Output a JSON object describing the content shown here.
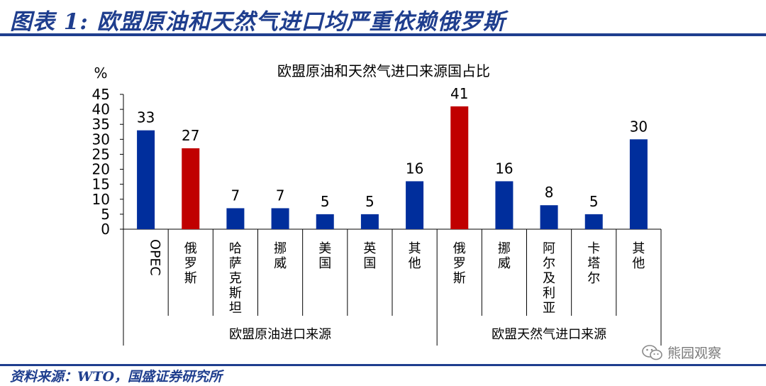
{
  "figure": {
    "title": "图表 1:  欧盟原油和天然气进口均严重依赖俄罗斯",
    "source": "资料来源：WTO，国盛证券研究所",
    "watermark": "熊园观察",
    "accent_color": "#1f3e8e"
  },
  "chart_data": {
    "type": "bar",
    "title": "欧盟原油和天然气进口来源国占比",
    "ylabel": "%",
    "ylim": [
      0,
      45
    ],
    "yticks": [
      0,
      5,
      10,
      15,
      20,
      25,
      30,
      35,
      40,
      45
    ],
    "grid": false,
    "categories": [
      "OPEC",
      "俄罗斯",
      "哈萨克斯坦",
      "挪威",
      "美国",
      "英国",
      "其他",
      "俄罗斯",
      "挪威",
      "阿尔及利亚",
      "卡塔尔",
      "其他"
    ],
    "values": [
      33,
      27,
      7,
      7,
      5,
      5,
      16,
      41,
      16,
      8,
      5,
      30
    ],
    "groups": [
      {
        "label": "欧盟原油进口来源",
        "count": 7
      },
      {
        "label": "欧盟天然气进口来源",
        "count": 5
      }
    ],
    "colors": {
      "default": "#002e9c",
      "highlight": "#c00000"
    },
    "highlight_indices": [
      1,
      7
    ]
  }
}
